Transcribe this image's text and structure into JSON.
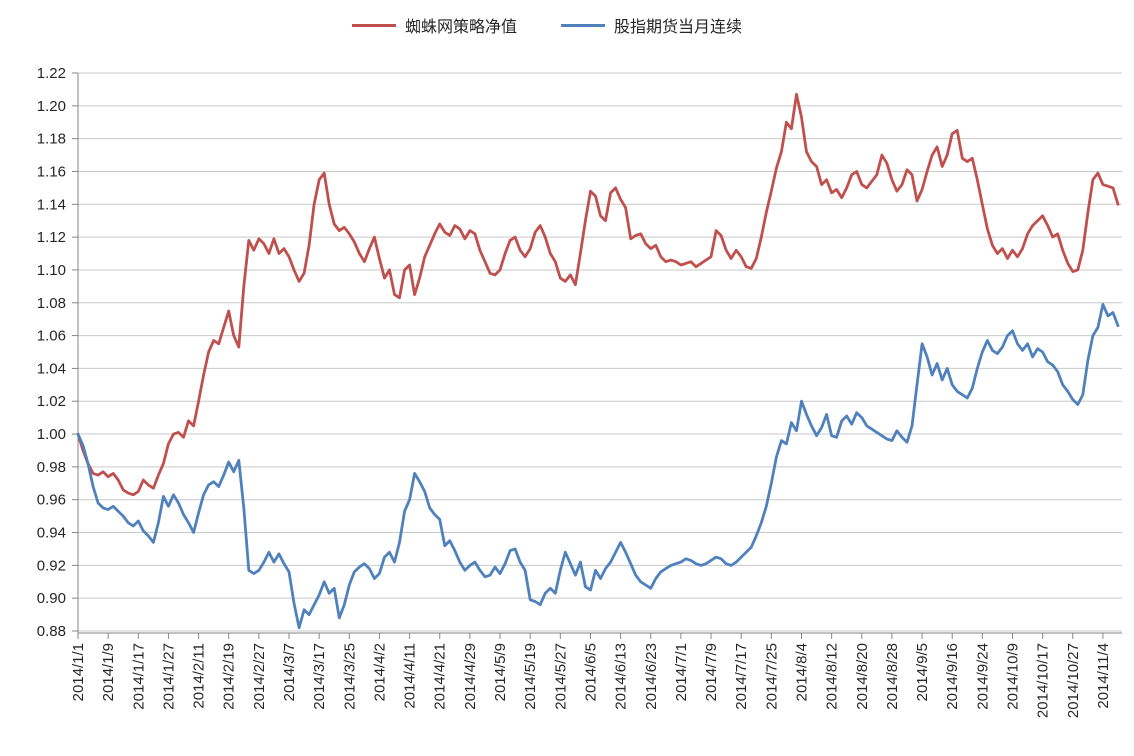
{
  "legend": [
    {
      "label": "蜘蛛网策略净值",
      "color": "#C0504D"
    },
    {
      "label": "股指期货当月连续",
      "color": "#4F81BD"
    }
  ],
  "chart_data": {
    "type": "line",
    "title": "",
    "xlabel": "",
    "ylabel": "",
    "ylim": [
      0.88,
      1.22
    ],
    "y_tick_step": 0.02,
    "grid": true,
    "legend_position": "top",
    "y_tick_labels": [
      "1.22",
      "1.20",
      "1.18",
      "1.16",
      "1.14",
      "1.12",
      "1.10",
      "1.08",
      "1.06",
      "1.04",
      "1.02",
      "1.00",
      "0.98",
      "0.96",
      "0.94",
      "0.92",
      "0.90",
      "0.88"
    ],
    "x_tick_labels": [
      "2014/1/1",
      "2014/1/9",
      "2014/1/17",
      "2014/1/27",
      "2014/2/11",
      "2014/2/19",
      "2014/2/27",
      "2014/3/7",
      "2014/3/17",
      "2014/3/25",
      "2014/4/2",
      "2014/4/11",
      "2014/4/21",
      "2014/4/29",
      "2014/5/9",
      "2014/5/19",
      "2014/5/27",
      "2014/6/5",
      "2014/6/13",
      "2014/6/23",
      "2014/7/1",
      "2014/7/9",
      "2014/7/17",
      "2014/7/25",
      "2014/8/4",
      "2014/8/12",
      "2014/8/20",
      "2014/8/28",
      "2014/9/5",
      "2014/9/16",
      "2014/9/24",
      "2014/10/9",
      "2014/10/17",
      "2014/10/27",
      "2014/11/4"
    ],
    "x_tick_every": 6,
    "x": [
      "2014/1/1",
      "2014/1/2",
      "2014/1/3",
      "2014/1/6",
      "2014/1/7",
      "2014/1/8",
      "2014/1/9",
      "2014/1/10",
      "2014/1/13",
      "2014/1/14",
      "2014/1/15",
      "2014/1/16",
      "2014/1/17",
      "2014/1/20",
      "2014/1/21",
      "2014/1/22",
      "2014/1/23",
      "2014/1/24",
      "2014/1/27",
      "2014/1/28",
      "2014/1/29",
      "2014/1/30",
      "2014/2/7",
      "2014/2/10",
      "2014/2/11",
      "2014/2/12",
      "2014/2/13",
      "2014/2/14",
      "2014/2/17",
      "2014/2/18",
      "2014/2/19",
      "2014/2/20",
      "2014/2/21",
      "2014/2/24",
      "2014/2/25",
      "2014/2/26",
      "2014/2/27",
      "2014/2/28",
      "2014/3/3",
      "2014/3/4",
      "2014/3/5",
      "2014/3/6",
      "2014/3/7",
      "2014/3/10",
      "2014/3/11",
      "2014/3/12",
      "2014/3/13",
      "2014/3/14",
      "2014/3/17",
      "2014/3/18",
      "2014/3/19",
      "2014/3/20",
      "2014/3/21",
      "2014/3/24",
      "2014/3/25",
      "2014/3/26",
      "2014/3/27",
      "2014/3/28",
      "2014/3/31",
      "2014/4/1",
      "2014/4/2",
      "2014/4/3",
      "2014/4/4",
      "2014/4/8",
      "2014/4/9",
      "2014/4/10",
      "2014/4/11",
      "2014/4/14",
      "2014/4/15",
      "2014/4/16",
      "2014/4/17",
      "2014/4/18",
      "2014/4/21",
      "2014/4/22",
      "2014/4/23",
      "2014/4/24",
      "2014/4/25",
      "2014/4/28",
      "2014/4/29",
      "2014/4/30",
      "2014/5/5",
      "2014/5/6",
      "2014/5/7",
      "2014/5/8",
      "2014/5/9",
      "2014/5/12",
      "2014/5/13",
      "2014/5/14",
      "2014/5/15",
      "2014/5/16",
      "2014/5/19",
      "2014/5/20",
      "2014/5/21",
      "2014/5/22",
      "2014/5/23",
      "2014/5/26",
      "2014/5/27",
      "2014/5/28",
      "2014/5/29",
      "2014/5/30",
      "2014/6/3",
      "2014/6/4",
      "2014/6/5",
      "2014/6/6",
      "2014/6/9",
      "2014/6/10",
      "2014/6/11",
      "2014/6/12",
      "2014/6/13",
      "2014/6/16",
      "2014/6/17",
      "2014/6/18",
      "2014/6/19",
      "2014/6/20",
      "2014/6/23",
      "2014/6/24",
      "2014/6/25",
      "2014/6/26",
      "2014/6/27",
      "2014/6/30",
      "2014/7/1",
      "2014/7/2",
      "2014/7/3",
      "2014/7/4",
      "2014/7/7",
      "2014/7/8",
      "2014/7/9",
      "2014/7/10",
      "2014/7/11",
      "2014/7/14",
      "2014/7/15",
      "2014/7/16",
      "2014/7/17",
      "2014/7/18",
      "2014/7/21",
      "2014/7/22",
      "2014/7/23",
      "2014/7/24",
      "2014/7/25",
      "2014/7/28",
      "2014/7/29",
      "2014/7/30",
      "2014/7/31",
      "2014/8/1",
      "2014/8/4",
      "2014/8/5",
      "2014/8/6",
      "2014/8/7",
      "2014/8/8",
      "2014/8/11",
      "2014/8/12",
      "2014/8/13",
      "2014/8/14",
      "2014/8/15",
      "2014/8/18",
      "2014/8/19",
      "2014/8/20",
      "2014/8/21",
      "2014/8/22",
      "2014/8/25",
      "2014/8/26",
      "2014/8/27",
      "2014/8/28",
      "2014/8/29",
      "2014/9/1",
      "2014/9/2",
      "2014/9/3",
      "2014/9/4",
      "2014/9/5",
      "2014/9/9",
      "2014/9/10",
      "2014/9/11",
      "2014/9/12",
      "2014/9/15",
      "2014/9/16",
      "2014/9/17",
      "2014/9/18",
      "2014/9/19",
      "2014/9/22",
      "2014/9/23",
      "2014/9/24",
      "2014/9/25",
      "2014/9/26",
      "2014/9/29",
      "2014/9/30",
      "2014/10/8",
      "2014/10/9",
      "2014/10/10",
      "2014/10/13",
      "2014/10/14",
      "2014/10/15",
      "2014/10/16",
      "2014/10/17",
      "2014/10/20",
      "2014/10/21",
      "2014/10/22",
      "2014/10/23",
      "2014/10/24",
      "2014/10/27",
      "2014/10/28",
      "2014/10/29",
      "2014/10/30",
      "2014/10/31",
      "2014/11/3",
      "2014/11/4",
      "2014/11/5",
      "2014/11/6",
      "2014/11/7"
    ],
    "series": [
      {
        "name": "蜘蛛网策略净值",
        "color": "#C0504D",
        "values": [
          1.0,
          0.99,
          0.982,
          0.976,
          0.975,
          0.977,
          0.974,
          0.976,
          0.972,
          0.966,
          0.964,
          0.963,
          0.965,
          0.972,
          0.969,
          0.967,
          0.975,
          0.982,
          0.994,
          1.0,
          1.001,
          0.998,
          1.008,
          1.005,
          1.02,
          1.036,
          1.05,
          1.057,
          1.055,
          1.065,
          1.075,
          1.06,
          1.053,
          1.09,
          1.118,
          1.112,
          1.119,
          1.116,
          1.11,
          1.119,
          1.11,
          1.113,
          1.108,
          1.1,
          1.093,
          1.098,
          1.115,
          1.14,
          1.155,
          1.159,
          1.14,
          1.128,
          1.124,
          1.126,
          1.122,
          1.117,
          1.11,
          1.105,
          1.113,
          1.12,
          1.107,
          1.095,
          1.1,
          1.085,
          1.083,
          1.1,
          1.103,
          1.085,
          1.095,
          1.108,
          1.115,
          1.122,
          1.128,
          1.123,
          1.121,
          1.127,
          1.125,
          1.119,
          1.124,
          1.122,
          1.112,
          1.105,
          1.098,
          1.097,
          1.1,
          1.11,
          1.118,
          1.12,
          1.112,
          1.108,
          1.113,
          1.123,
          1.127,
          1.12,
          1.11,
          1.105,
          1.095,
          1.093,
          1.097,
          1.091,
          1.11,
          1.13,
          1.148,
          1.145,
          1.133,
          1.13,
          1.147,
          1.15,
          1.143,
          1.138,
          1.119,
          1.121,
          1.122,
          1.116,
          1.113,
          1.115,
          1.108,
          1.105,
          1.106,
          1.105,
          1.103,
          1.104,
          1.105,
          1.102,
          1.104,
          1.106,
          1.108,
          1.124,
          1.121,
          1.112,
          1.107,
          1.112,
          1.108,
          1.102,
          1.101,
          1.107,
          1.12,
          1.135,
          1.148,
          1.162,
          1.172,
          1.19,
          1.186,
          1.207,
          1.193,
          1.172,
          1.166,
          1.163,
          1.152,
          1.155,
          1.147,
          1.149,
          1.144,
          1.15,
          1.158,
          1.16,
          1.152,
          1.15,
          1.154,
          1.158,
          1.17,
          1.165,
          1.155,
          1.148,
          1.152,
          1.161,
          1.158,
          1.142,
          1.149,
          1.16,
          1.17,
          1.175,
          1.163,
          1.17,
          1.183,
          1.185,
          1.168,
          1.166,
          1.168,
          1.155,
          1.14,
          1.125,
          1.115,
          1.11,
          1.113,
          1.107,
          1.112,
          1.108,
          1.113,
          1.122,
          1.127,
          1.13,
          1.133,
          1.127,
          1.12,
          1.122,
          1.112,
          1.104,
          1.099,
          1.1,
          1.112,
          1.135,
          1.155,
          1.159,
          1.152,
          1.151,
          1.15,
          1.14
        ]
      },
      {
        "name": "股指期货当月连续",
        "color": "#4F81BD",
        "values": [
          1.0,
          0.993,
          0.982,
          0.968,
          0.958,
          0.955,
          0.954,
          0.956,
          0.953,
          0.95,
          0.946,
          0.944,
          0.947,
          0.941,
          0.938,
          0.934,
          0.946,
          0.962,
          0.956,
          0.963,
          0.958,
          0.951,
          0.946,
          0.94,
          0.952,
          0.963,
          0.969,
          0.971,
          0.968,
          0.975,
          0.983,
          0.977,
          0.984,
          0.955,
          0.917,
          0.915,
          0.917,
          0.922,
          0.928,
          0.922,
          0.927,
          0.921,
          0.916,
          0.897,
          0.882,
          0.893,
          0.89,
          0.896,
          0.902,
          0.91,
          0.903,
          0.906,
          0.888,
          0.896,
          0.908,
          0.916,
          0.919,
          0.921,
          0.918,
          0.912,
          0.915,
          0.925,
          0.928,
          0.922,
          0.934,
          0.953,
          0.96,
          0.976,
          0.971,
          0.965,
          0.955,
          0.951,
          0.948,
          0.932,
          0.935,
          0.929,
          0.922,
          0.917,
          0.92,
          0.922,
          0.917,
          0.913,
          0.914,
          0.919,
          0.915,
          0.921,
          0.929,
          0.93,
          0.922,
          0.917,
          0.899,
          0.898,
          0.896,
          0.903,
          0.906,
          0.903,
          0.917,
          0.928,
          0.921,
          0.914,
          0.922,
          0.907,
          0.905,
          0.917,
          0.912,
          0.918,
          0.922,
          0.928,
          0.934,
          0.928,
          0.921,
          0.914,
          0.91,
          0.908,
          0.906,
          0.912,
          0.916,
          0.918,
          0.92,
          0.921,
          0.922,
          0.924,
          0.923,
          0.921,
          0.92,
          0.921,
          0.923,
          0.925,
          0.924,
          0.921,
          0.92,
          0.922,
          0.925,
          0.928,
          0.931,
          0.938,
          0.946,
          0.956,
          0.97,
          0.986,
          0.996,
          0.994,
          1.007,
          1.002,
          1.02,
          1.012,
          1.005,
          0.999,
          1.004,
          1.012,
          0.999,
          0.998,
          1.008,
          1.011,
          1.006,
          1.013,
          1.01,
          1.005,
          1.003,
          1.001,
          0.999,
          0.997,
          0.996,
          1.002,
          0.998,
          0.995,
          1.005,
          1.03,
          1.055,
          1.047,
          1.036,
          1.043,
          1.033,
          1.04,
          1.03,
          1.026,
          1.024,
          1.022,
          1.028,
          1.04,
          1.05,
          1.057,
          1.051,
          1.049,
          1.053,
          1.06,
          1.063,
          1.055,
          1.051,
          1.055,
          1.047,
          1.052,
          1.05,
          1.044,
          1.042,
          1.038,
          1.03,
          1.026,
          1.021,
          1.018,
          1.024,
          1.045,
          1.06,
          1.065,
          1.079,
          1.072,
          1.074,
          1.066
        ]
      }
    ],
    "colors": {
      "grid": "#c9c9c9",
      "axis": "#868686",
      "text": "#262626",
      "background": "#ffffff"
    }
  }
}
